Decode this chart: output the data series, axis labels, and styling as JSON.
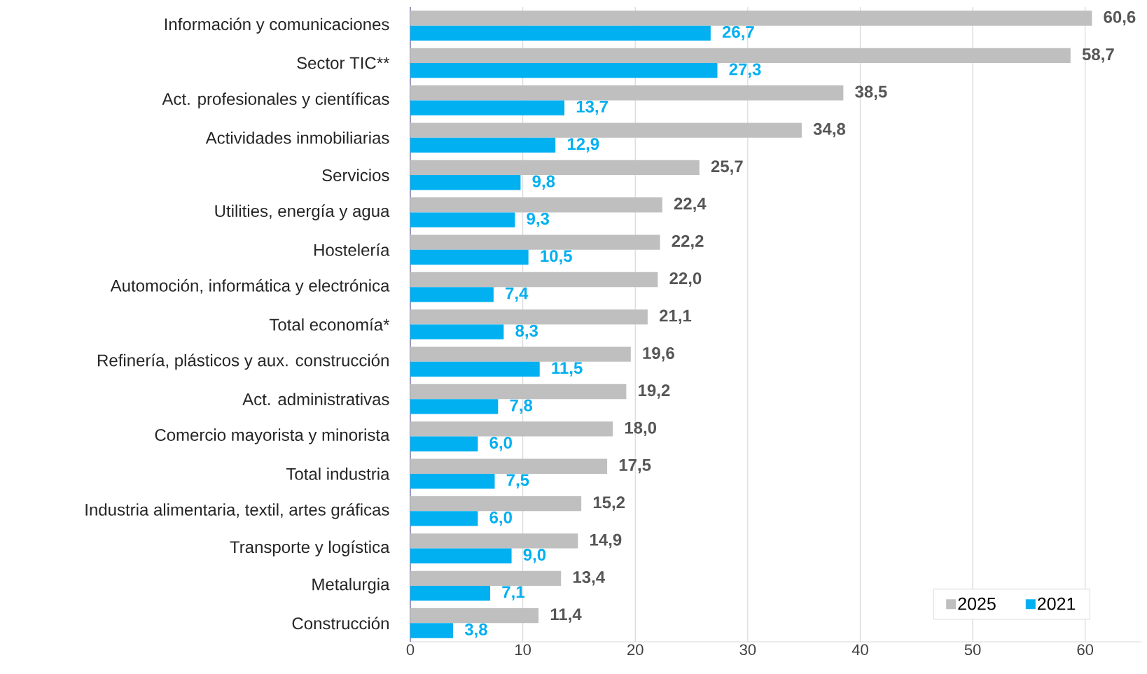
{
  "chart_data": {
    "type": "bar",
    "orientation": "horizontal",
    "categories": [
      "Información y comunicaciones",
      "Sector TIC**",
      "Act. profesionales y científicas",
      "Actividades inmobiliarias",
      "Servicios",
      "Utilities, energía y agua",
      "Hostelería",
      "Automoción, informática y electrónica",
      "Total economía*",
      "Refinería, plásticos y aux. construcción",
      "Act. administrativas",
      "Comercio mayorista y minorista",
      "Total industria",
      "Industria alimentaria, textil, artes gráficas",
      "Transporte y logística",
      "Metalurgia",
      "Construcción"
    ],
    "series": [
      {
        "name": "2025",
        "color": "#bfbfbf",
        "values": [
          60.6,
          58.7,
          38.5,
          34.8,
          25.7,
          22.4,
          22.2,
          22.0,
          21.1,
          19.6,
          19.2,
          18.0,
          17.5,
          15.2,
          14.9,
          13.4,
          11.4
        ],
        "value_labels": [
          "60,6",
          "58,7",
          "38,5",
          "34,8",
          "25,7",
          "22,4",
          "22,2",
          "22,0",
          "21,1",
          "19,6",
          "19,2",
          "18,0",
          "17,5",
          "15,2",
          "14,9",
          "13,4",
          "11,4"
        ]
      },
      {
        "name": "2021",
        "color": "#00b0f0",
        "values": [
          26.7,
          27.3,
          13.7,
          12.9,
          9.8,
          9.3,
          10.5,
          7.4,
          8.3,
          11.5,
          7.8,
          6.0,
          7.5,
          6.0,
          9.0,
          7.1,
          3.8
        ],
        "value_labels": [
          "26,7",
          "27,3",
          "13,7",
          "12,9",
          "9,8",
          "9,3",
          "10,5",
          "7,4",
          "8,3",
          "11,5",
          "7,8",
          "6,0",
          "7,5",
          "6,0",
          "9,0",
          "7,1",
          "3,8"
        ]
      }
    ],
    "xlim": [
      0,
      65
    ],
    "xticks": [
      0,
      10,
      20,
      30,
      40,
      50,
      60
    ],
    "grid": "x",
    "legend": "bottom right"
  }
}
